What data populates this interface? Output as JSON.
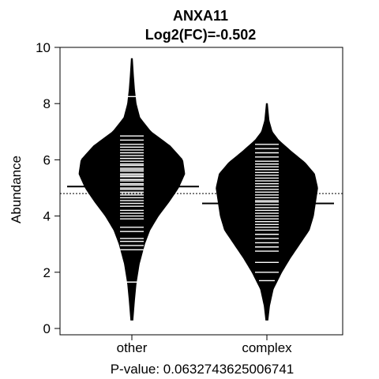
{
  "chart_data": {
    "type": "beanplot",
    "title": "ANXA11",
    "subtitle": "Log2(FC)=-0.502",
    "ylabel": "Abundance",
    "xlabel": "P-value: 0.0632743625006741",
    "ylim": [
      0,
      10
    ],
    "yticks": [
      0,
      2,
      4,
      6,
      8,
      10
    ],
    "categories": [
      "other",
      "complex"
    ],
    "overall_mean": 4.8,
    "beans": [
      {
        "name": "other",
        "mean": 5.05,
        "min": 0.3,
        "max": 9.6,
        "density_y": [
          0.3,
          1.0,
          1.6,
          2.3,
          3.0,
          3.5,
          4.0,
          4.5,
          5.0,
          5.5,
          6.0,
          6.5,
          7.0,
          7.5,
          8.0,
          8.5,
          9.0,
          9.6
        ],
        "density_width": [
          0.02,
          0.05,
          0.08,
          0.14,
          0.24,
          0.34,
          0.5,
          0.7,
          0.88,
          1.0,
          0.96,
          0.72,
          0.36,
          0.15,
          0.08,
          0.05,
          0.03,
          0.01
        ],
        "observations": [
          1.65,
          2.8,
          2.95,
          3.1,
          3.2,
          3.45,
          3.6,
          3.9,
          4.0,
          4.1,
          4.2,
          4.35,
          4.45,
          4.55,
          4.65,
          4.75,
          4.8,
          4.85,
          4.95,
          5.0,
          5.1,
          5.15,
          5.25,
          5.3,
          5.4,
          5.45,
          5.5,
          5.6,
          5.65,
          5.7,
          5.8,
          5.85,
          5.95,
          6.05,
          6.15,
          6.25,
          6.35,
          6.45,
          6.55,
          6.7,
          6.85,
          8.25
        ]
      },
      {
        "name": "complex",
        "mean": 4.45,
        "min": 0.3,
        "max": 8.0,
        "density_y": [
          0.3,
          0.8,
          1.4,
          2.0,
          2.5,
          3.0,
          3.5,
          4.0,
          4.5,
          5.0,
          5.5,
          5.9,
          6.3,
          6.7,
          7.0,
          7.4,
          8.0
        ],
        "density_width": [
          0.02,
          0.05,
          0.12,
          0.28,
          0.44,
          0.62,
          0.8,
          0.88,
          0.92,
          0.96,
          0.9,
          0.72,
          0.46,
          0.22,
          0.1,
          0.04,
          0.01
        ],
        "observations": [
          1.7,
          2.0,
          2.35,
          2.75,
          2.9,
          3.05,
          3.2,
          3.35,
          3.5,
          3.6,
          3.7,
          3.8,
          3.9,
          4.0,
          4.1,
          4.2,
          4.3,
          4.4,
          4.5,
          4.55,
          4.65,
          4.75,
          4.85,
          4.95,
          5.05,
          5.15,
          5.25,
          5.35,
          5.45,
          5.55,
          5.65,
          5.75,
          5.85,
          5.95,
          6.1,
          6.25,
          6.4,
          6.55
        ]
      }
    ]
  }
}
